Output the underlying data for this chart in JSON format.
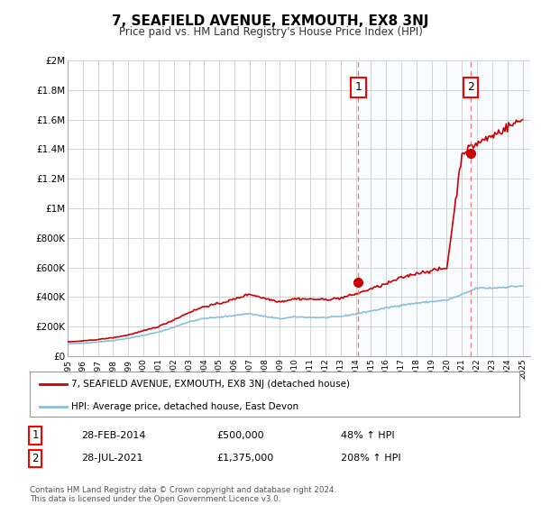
{
  "title": "7, SEAFIELD AVENUE, EXMOUTH, EX8 3NJ",
  "subtitle": "Price paid vs. HM Land Registry's House Price Index (HPI)",
  "footer": "Contains HM Land Registry data © Crown copyright and database right 2024.\nThis data is licensed under the Open Government Licence v3.0.",
  "legend_line1": "7, SEAFIELD AVENUE, EXMOUTH, EX8 3NJ (detached house)",
  "legend_line2": "HPI: Average price, detached house, East Devon",
  "sale1_label": "1",
  "sale1_date": "28-FEB-2014",
  "sale1_price": "£500,000",
  "sale1_hpi": "48% ↑ HPI",
  "sale1_year": 2014.16,
  "sale1_value": 500000,
  "sale2_label": "2",
  "sale2_date": "28-JUL-2021",
  "sale2_price": "£1,375,000",
  "sale2_hpi": "208% ↑ HPI",
  "sale2_year": 2021.58,
  "sale2_value": 1375000,
  "hpi_color": "#8bbfdb",
  "property_color": "#cc0000",
  "dashed_line_color": "#e87070",
  "shade_color": "#ddeeff",
  "background_color": "#ffffff",
  "grid_color": "#cccccc",
  "ylim": [
    0,
    2000000
  ],
  "xlim": [
    1995.0,
    2025.5
  ],
  "yticks": [
    0,
    200000,
    400000,
    600000,
    800000,
    1000000,
    1200000,
    1400000,
    1600000,
    1800000,
    2000000
  ],
  "ytick_labels": [
    "£0",
    "£200K",
    "£400K",
    "£600K",
    "£800K",
    "£1M",
    "£1.2M",
    "£1.4M",
    "£1.6M",
    "£1.8M",
    "£2M"
  ],
  "xticks": [
    1995,
    1996,
    1997,
    1998,
    1999,
    2000,
    2001,
    2002,
    2003,
    2004,
    2005,
    2006,
    2007,
    2008,
    2009,
    2010,
    2011,
    2012,
    2013,
    2014,
    2015,
    2016,
    2017,
    2018,
    2019,
    2020,
    2021,
    2022,
    2023,
    2024,
    2025
  ]
}
